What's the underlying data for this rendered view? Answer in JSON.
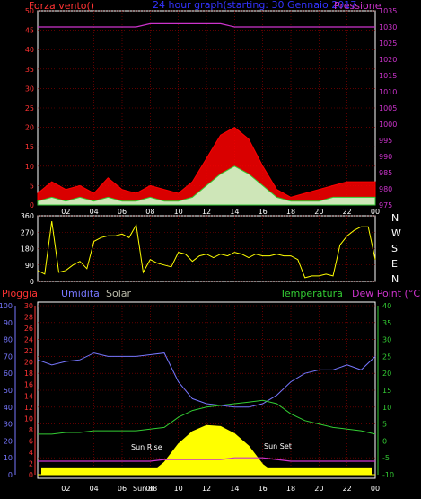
{
  "header": {
    "left": "Forza vento()",
    "center": "24 hour graph(starting: 30 Gennaio 2017",
    "right": "Pressione"
  },
  "colors": {
    "bg": "#000000",
    "wind": "#ff0000",
    "wind_avg": "#33cc33",
    "wind_low": "#ccffcc",
    "pressure": "#cc33cc",
    "direction": "#ffff00",
    "humidity": "#7777ff",
    "temperature": "#33cc33",
    "dewpoint": "#cc33cc",
    "solar": "#ffff00",
    "rain": "#ff3333",
    "grid": "#990000",
    "frame": "#ffffff"
  },
  "time_ticks": [
    "02",
    "04",
    "06",
    "08",
    "10",
    "12",
    "14",
    "16",
    "18",
    "20",
    "22",
    "00"
  ],
  "panel1": {
    "title_left": "Forza vento()",
    "title_right": "Pressione",
    "left_ticks": [
      "50",
      "45",
      "40",
      "35",
      "30",
      "25",
      "20",
      "15",
      "10",
      "5",
      "0"
    ],
    "right_ticks": [
      "1035",
      "1030",
      "1025",
      "1020",
      "1015",
      "1010",
      "1005",
      "1000",
      "995",
      "990",
      "985",
      "980",
      "975"
    ],
    "ylim_wind": [
      0,
      50
    ],
    "ylim_pressure": [
      975,
      1035
    ]
  },
  "panel2": {
    "left_ticks": [
      "360",
      "270",
      "180",
      "90",
      "0"
    ],
    "right_labels": [
      "N",
      "W",
      "S",
      "E",
      "N"
    ],
    "ylim": [
      0,
      360
    ]
  },
  "panel3": {
    "headers": {
      "pioggia": "Pioggia",
      "umidita": "Umidita",
      "solar": "Solar",
      "temperatura": "Temperatura",
      "dew": "Dew Point (°C)"
    },
    "humidity_ticks": [
      "100",
      "90",
      "80",
      "70",
      "60",
      "50",
      "40",
      "30",
      "20",
      "10",
      "0"
    ],
    "rain_ticks": [
      "30",
      "28",
      "26",
      "24",
      "22",
      "20",
      "18",
      "16",
      "14",
      "12",
      "10",
      "8",
      "6",
      "4",
      "2",
      "0"
    ],
    "temp_ticks": [
      "40",
      "35",
      "30",
      "25",
      "20",
      "15",
      "10",
      "5",
      "0",
      "-5",
      "-10"
    ],
    "sun_rise": "Sun Rise",
    "sun_set": "Sun Set",
    "sun_tick": "Sun",
    "sun_tick2": "88"
  },
  "chart_data": [
    {
      "type": "line",
      "x": [
        0,
        1,
        2,
        3,
        4,
        5,
        6,
        7,
        8,
        9,
        10,
        11,
        12,
        13,
        14,
        15,
        16,
        17,
        18,
        19,
        20,
        21,
        22,
        23,
        24
      ],
      "series": [
        {
          "values": [
            3,
            6,
            4,
            5,
            3,
            7,
            4,
            3,
            5,
            4,
            3,
            6,
            12,
            18,
            20,
            17,
            10,
            4,
            2,
            3,
            4,
            5,
            6,
            6,
            6
          ]
        },
        {
          "values": [
            1,
            2,
            1,
            2,
            1,
            2,
            1,
            1,
            2,
            1,
            1,
            2,
            5,
            8,
            10,
            8,
            5,
            2,
            1,
            1,
            1,
            2,
            2,
            2,
            2
          ]
        },
        {
          "values": [
            1030,
            1030,
            1030,
            1030,
            1030,
            1030,
            1030,
            1030,
            1031,
            1031,
            1031,
            1031,
            1031,
            1031,
            1030,
            1030,
            1030,
            1030,
            1030,
            1030,
            1030,
            1030,
            1030,
            1030,
            1030
          ]
        }
      ]
    },
    {
      "type": "line",
      "x": [
        0,
        0.5,
        1,
        1.5,
        2,
        2.5,
        3,
        3.5,
        4,
        4.5,
        5,
        5.5,
        6,
        6.5,
        7,
        7.5,
        8,
        8.5,
        9,
        9.5,
        10,
        10.5,
        11,
        11.5,
        12,
        12.5,
        13,
        13.5,
        14,
        14.5,
        15,
        15.5,
        16,
        16.5,
        17,
        17.5,
        18,
        18.5,
        19,
        19.5,
        20,
        20.5,
        21,
        21.5,
        22,
        22.5,
        23,
        23.5,
        24
      ],
      "series": [
        {
          "values": [
            60,
            40,
            330,
            50,
            60,
            90,
            110,
            70,
            220,
            240,
            250,
            250,
            260,
            240,
            310,
            50,
            120,
            100,
            90,
            80,
            160,
            150,
            110,
            140,
            150,
            130,
            150,
            140,
            160,
            150,
            130,
            150,
            140,
            140,
            150,
            140,
            140,
            120,
            20,
            30,
            30,
            40,
            30,
            200,
            250,
            280,
            300,
            300,
            120
          ]
        }
      ]
    },
    {
      "type": "line",
      "x": [
        0,
        1,
        2,
        3,
        4,
        5,
        6,
        7,
        8,
        9,
        10,
        11,
        12,
        13,
        14,
        15,
        16,
        17,
        18,
        19,
        20,
        21,
        22,
        23,
        24
      ],
      "series": [
        {
          "values": [
            68,
            65,
            67,
            68,
            72,
            70,
            70,
            70,
            71,
            72,
            55,
            45,
            42,
            41,
            40,
            40,
            42,
            47,
            55,
            60,
            62,
            62,
            65,
            62,
            70
          ]
        },
        {
          "values": [
            1,
            1,
            1,
            1,
            1,
            1,
            1,
            1,
            1,
            1,
            1,
            1,
            1,
            1,
            1,
            1,
            1,
            1,
            1,
            1,
            1,
            1,
            1,
            1,
            1
          ]
        },
        {
          "values": [
            0,
            0,
            0,
            0,
            0,
            0,
            0,
            0,
            10,
            120,
            300,
            420,
            480,
            470,
            400,
            280,
            100,
            0,
            0,
            0,
            0,
            0,
            0,
            0,
            0
          ]
        },
        {
          "values": [
            2,
            2,
            2.5,
            2.5,
            3,
            3,
            3,
            3,
            3.5,
            4,
            7,
            9,
            10,
            10.5,
            11,
            11.5,
            12,
            11,
            8,
            6,
            5,
            4,
            3.5,
            3,
            2
          ]
        },
        {
          "values": [
            -6,
            -6,
            -6,
            -6,
            -6,
            -6,
            -6,
            -6,
            -6,
            -5.5,
            -5.5,
            -5.5,
            -5.5,
            -5.5,
            -5,
            -5,
            -5,
            -5.5,
            -6,
            -6,
            -6,
            -6,
            -6,
            -6,
            -6
          ]
        }
      ]
    }
  ]
}
